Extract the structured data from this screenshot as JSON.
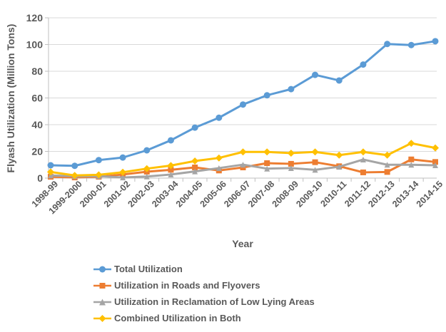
{
  "chart_data": {
    "type": "line",
    "title": "",
    "xlabel": "Year",
    "ylabel": "Flyash Utilization (Million Tons)",
    "ylim": [
      0,
      120
    ],
    "ytick_step": 20,
    "grid": "horizontal",
    "legend_position": "bottom-left",
    "categories": [
      "1998-99",
      "1999-2000",
      "2000-01",
      "2001-02",
      "2002-03",
      "2003-04",
      "2004-05",
      "2005-06",
      "2006-07",
      "2007-08",
      "2008-09",
      "2009-10",
      "2010-11",
      "2011-12",
      "2012-13",
      "2013-14",
      "2014-15"
    ],
    "series": [
      {
        "name": "Total Utilization",
        "color": "#5B9BD5",
        "marker": "circle",
        "values": [
          9.6,
          9.2,
          13.5,
          15.4,
          20.8,
          28.3,
          37.8,
          45.2,
          55.1,
          62.0,
          66.6,
          77.3,
          73.1,
          85.0,
          100.4,
          99.6,
          102.5
        ]
      },
      {
        "name": "Utilization in Roads and Flyovers",
        "color": "#ED7D31",
        "marker": "square",
        "values": [
          1.0,
          0.5,
          1.0,
          2.7,
          4.8,
          6.2,
          8.0,
          5.7,
          8.0,
          11.2,
          10.7,
          11.9,
          8.9,
          4.3,
          4.6,
          14.0,
          12.1
        ]
      },
      {
        "name": "Utilization in Reclamation of Low Lying Areas",
        "color": "#A5A5A5",
        "marker": "triangle",
        "values": [
          2.0,
          1.5,
          1.5,
          0.5,
          1.2,
          2.7,
          5.0,
          7.5,
          10.1,
          7.1,
          7.5,
          6.2,
          8.5,
          13.9,
          10.0,
          10.0,
          9.6
        ]
      },
      {
        "name": "Combined Utilization in Both",
        "color": "#FFC000",
        "marker": "diamond",
        "values": [
          4.6,
          2.0,
          2.5,
          4.4,
          7.1,
          9.4,
          12.8,
          15.1,
          19.6,
          19.6,
          18.7,
          19.6,
          17.2,
          19.6,
          17.2,
          26.1,
          22.6
        ]
      }
    ],
    "colors": {
      "axis_text": "#595959",
      "gridline": "#D9D9D9",
      "axis_line": "#BFBFBF"
    }
  }
}
